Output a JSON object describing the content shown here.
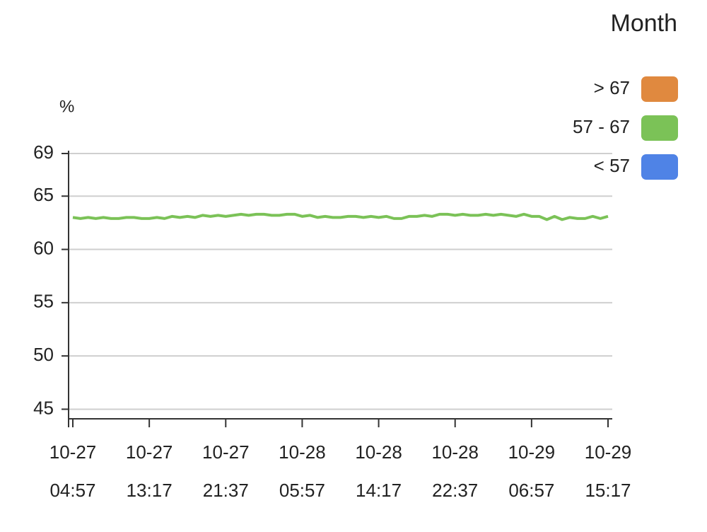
{
  "chart_data": {
    "type": "line",
    "y_unit": "%",
    "legend": {
      "title": "Month",
      "items": [
        {
          "label": "> 67",
          "color": "#e0893f"
        },
        {
          "label": "57 - 67",
          "color": "#7bc257"
        },
        {
          "label": "< 57",
          "color": "#4f83e6"
        }
      ]
    },
    "categories": [
      [
        "10-27",
        "04:57"
      ],
      null,
      null,
      null,
      null,
      null,
      null,
      null,
      null,
      null,
      [
        "10-27",
        "13:17"
      ],
      null,
      null,
      null,
      null,
      null,
      null,
      null,
      null,
      null,
      [
        "10-27",
        "21:37"
      ],
      null,
      null,
      null,
      null,
      null,
      null,
      null,
      null,
      null,
      [
        "10-28",
        "05:57"
      ],
      null,
      null,
      null,
      null,
      null,
      null,
      null,
      null,
      null,
      [
        "10-28",
        "14:17"
      ],
      null,
      null,
      null,
      null,
      null,
      null,
      null,
      null,
      null,
      [
        "10-28",
        "22:37"
      ],
      null,
      null,
      null,
      null,
      null,
      null,
      null,
      null,
      null,
      [
        "10-29",
        "06:57"
      ],
      null,
      null,
      null,
      null,
      null,
      null,
      null,
      null,
      null,
      [
        "10-29",
        "15:17"
      ]
    ],
    "values": [
      63.0,
      62.9,
      63.0,
      62.9,
      63.0,
      62.9,
      62.9,
      63.0,
      63.0,
      62.9,
      62.9,
      63.0,
      62.9,
      63.1,
      63.0,
      63.1,
      63.0,
      63.2,
      63.1,
      63.2,
      63.1,
      63.2,
      63.3,
      63.2,
      63.3,
      63.3,
      63.2,
      63.2,
      63.3,
      63.3,
      63.1,
      63.2,
      63.0,
      63.1,
      63.0,
      63.0,
      63.1,
      63.1,
      63.0,
      63.1,
      63.0,
      63.1,
      62.9,
      62.9,
      63.1,
      63.1,
      63.2,
      63.1,
      63.3,
      63.3,
      63.2,
      63.3,
      63.2,
      63.2,
      63.3,
      63.2,
      63.3,
      63.2,
      63.1,
      63.3,
      63.1,
      63.1,
      62.8,
      63.1,
      62.8,
      63.0,
      62.9,
      62.9,
      63.1,
      62.9,
      63.1
    ],
    "color": "#7bc257",
    "ylim": [
      44.1,
      69
    ],
    "yticks": [
      45,
      50,
      55,
      60,
      65,
      69
    ],
    "grid": true
  }
}
